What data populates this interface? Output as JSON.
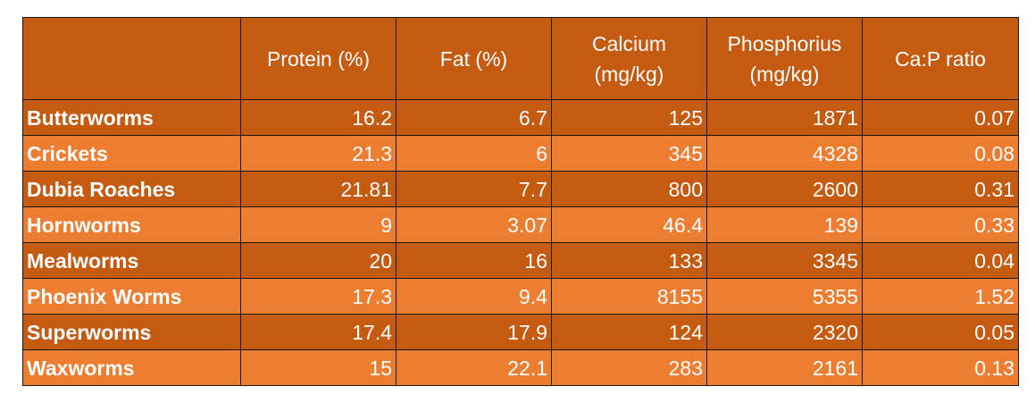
{
  "table": {
    "headers": [
      "",
      "Protein (%)",
      "Fat (%)",
      "Calcium\n(mg/kg)",
      "Phosphorius\n(mg/kg)",
      "Ca:P ratio"
    ],
    "rows": [
      {
        "name": "Butterworms",
        "protein": "16.2",
        "fat": "6.7",
        "calcium": "125",
        "phosphorus": "1871",
        "ratio": "0.07"
      },
      {
        "name": "Crickets",
        "protein": "21.3",
        "fat": "6",
        "calcium": "345",
        "phosphorus": "4328",
        "ratio": "0.08"
      },
      {
        "name": "Dubia Roaches",
        "protein": "21.81",
        "fat": "7.7",
        "calcium": "800",
        "phosphorus": "2600",
        "ratio": "0.31"
      },
      {
        "name": "Hornworms",
        "protein": "9",
        "fat": "3.07",
        "calcium": "46.4",
        "phosphorus": "139",
        "ratio": "0.33"
      },
      {
        "name": "Mealworms",
        "protein": "20",
        "fat": "16",
        "calcium": "133",
        "phosphorus": "3345",
        "ratio": "0.04"
      },
      {
        "name": "Phoenix Worms",
        "protein": "17.3",
        "fat": "9.4",
        "calcium": "8155",
        "phosphorus": "5355",
        "ratio": "1.52"
      },
      {
        "name": "Superworms",
        "protein": "17.4",
        "fat": "17.9",
        "calcium": "124",
        "phosphorus": "2320",
        "ratio": "0.05"
      },
      {
        "name": "Waxworms",
        "protein": "15",
        "fat": "22.1",
        "calcium": "283",
        "phosphorus": "2161",
        "ratio": "0.13"
      }
    ]
  },
  "colors": {
    "header_and_odd_rows": "#c55a11",
    "even_rows": "#ed7d31",
    "text": "#ffffff",
    "grid": "#1a1a1a"
  }
}
